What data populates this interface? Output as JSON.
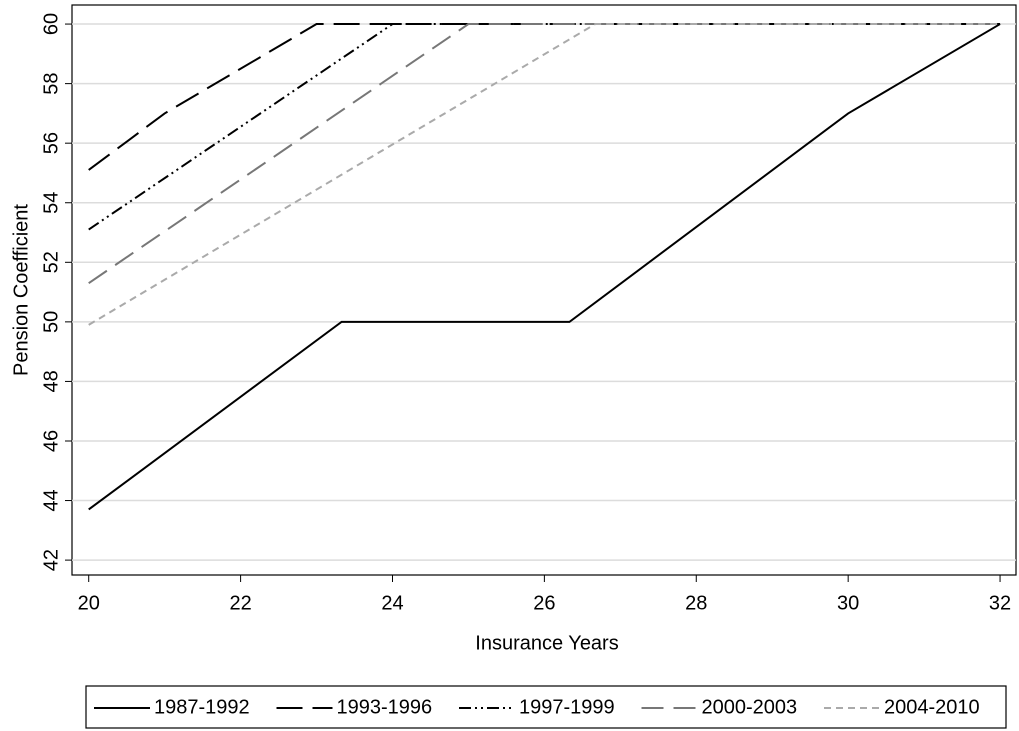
{
  "chart_data": {
    "type": "line",
    "x_label": "Insurance Years",
    "y_label": "Pension Coefficient",
    "xlim": [
      19.78,
      32.21
    ],
    "ylim": [
      41.5,
      60.64
    ],
    "xticks": [
      20,
      22,
      24,
      26,
      28,
      30,
      32
    ],
    "yticks": [
      42,
      44,
      46,
      48,
      50,
      52,
      54,
      56,
      58,
      60
    ],
    "grid": true,
    "legend": "bottom",
    "series": [
      {
        "name": "1987-1992",
        "color": "#000000",
        "dash": "none",
        "x": [
          20,
          23.33,
          26.33,
          30,
          32
        ],
        "values": [
          43.7,
          50,
          50,
          57,
          60
        ]
      },
      {
        "name": "1993-1996",
        "color": "#000000",
        "dash": "26 10",
        "x": [
          20,
          21,
          23,
          32
        ],
        "values": [
          55.1,
          57,
          60,
          60
        ]
      },
      {
        "name": "1997-1999",
        "color": "#000000",
        "dash": "12 4 2 4 2 4",
        "x": [
          20,
          24,
          32
        ],
        "values": [
          53.1,
          60,
          60
        ]
      },
      {
        "name": "2000-2003",
        "color": "#777777",
        "dash": "22 10",
        "x": [
          20,
          25,
          32
        ],
        "values": [
          51.3,
          60,
          60
        ]
      },
      {
        "name": "2004-2010",
        "color": "#aaaaaa",
        "dash": "7 5",
        "x": [
          20,
          26.67,
          32
        ],
        "values": [
          49.9,
          60,
          60
        ]
      }
    ]
  }
}
